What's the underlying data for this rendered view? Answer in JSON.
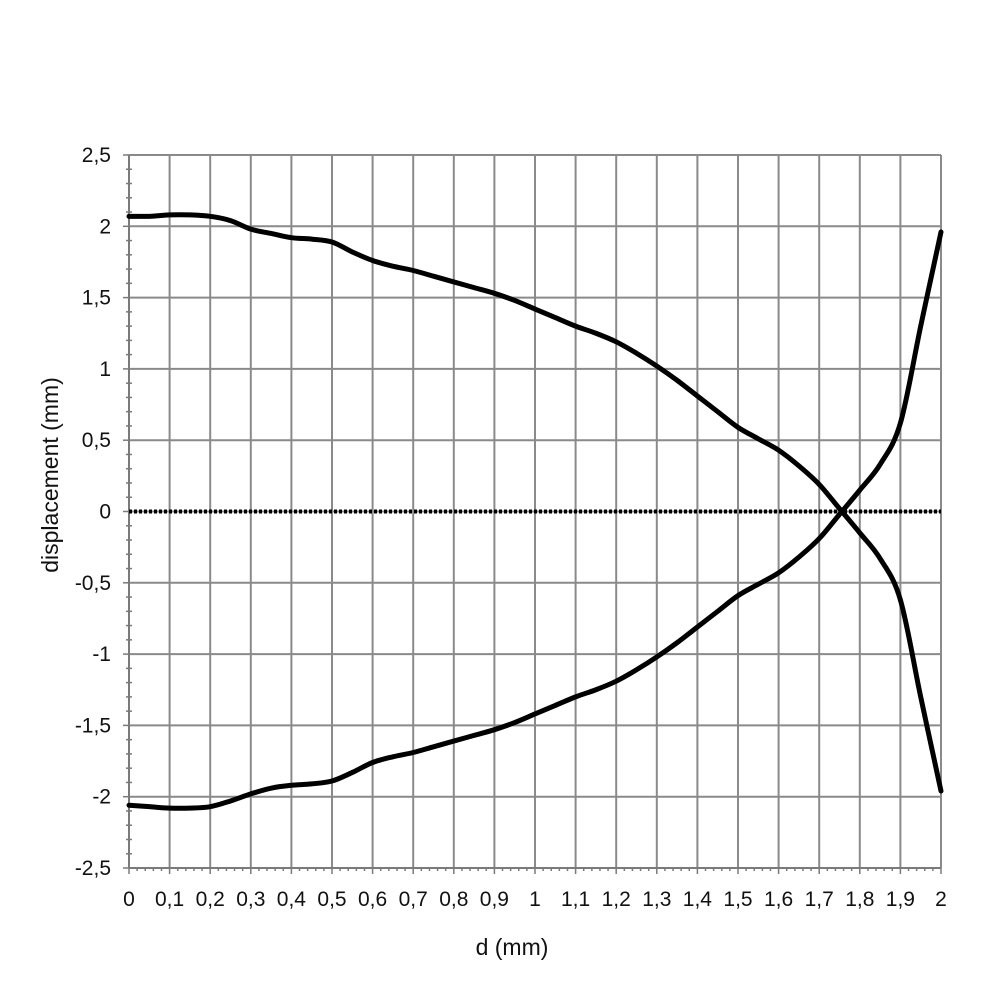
{
  "chart_data": {
    "type": "line",
    "xlabel": "d (mm)",
    "ylabel": "displacement (mm)",
    "xlim": [
      0,
      2
    ],
    "ylim": [
      -2.5,
      2.5
    ],
    "grid": true,
    "legend": "none",
    "x_tick_labels": [
      "0",
      "0,1",
      "0,2",
      "0,3",
      "0,4",
      "0,5",
      "0,6",
      "0,7",
      "0,8",
      "0,9",
      "1",
      "1,1",
      "1,2",
      "1,3",
      "1,4",
      "1,5",
      "1,6",
      "1,7",
      "1,8",
      "1,9",
      "2"
    ],
    "y_tick_labels": [
      "2,5",
      "2",
      "1,5",
      "1",
      "0,5",
      "0",
      "-0,5",
      "-1",
      "-1,5",
      "-2",
      "-2,5"
    ],
    "x": [
      0,
      0.05,
      0.1,
      0.15,
      0.2,
      0.25,
      0.3,
      0.35,
      0.4,
      0.45,
      0.5,
      0.55,
      0.6,
      0.65,
      0.7,
      0.75,
      0.8,
      0.85,
      0.9,
      0.95,
      1.0,
      1.05,
      1.1,
      1.15,
      1.2,
      1.25,
      1.3,
      1.35,
      1.4,
      1.45,
      1.5,
      1.55,
      1.6,
      1.65,
      1.7,
      1.75,
      1.8,
      1.85,
      1.9,
      1.95,
      2.0
    ],
    "series": [
      {
        "values": [
          2.07,
          2.07,
          2.08,
          2.08,
          2.07,
          2.04,
          1.98,
          1.95,
          1.92,
          1.91,
          1.89,
          1.82,
          1.76,
          1.72,
          1.69,
          1.65,
          1.61,
          1.57,
          1.53,
          1.48,
          1.42,
          1.36,
          1.3,
          1.25,
          1.19,
          1.11,
          1.02,
          0.92,
          0.81,
          0.7,
          0.59,
          0.51,
          0.43,
          0.32,
          0.19,
          0.02,
          -0.15,
          -0.33,
          -0.62,
          -1.3,
          -1.96
        ]
      },
      {
        "values": [
          -2.06,
          -2.07,
          -2.08,
          -2.08,
          -2.07,
          -2.03,
          -1.98,
          -1.94,
          -1.92,
          -1.91,
          -1.89,
          -1.83,
          -1.76,
          -1.72,
          -1.69,
          -1.65,
          -1.61,
          -1.57,
          -1.53,
          -1.48,
          -1.42,
          -1.36,
          -1.3,
          -1.25,
          -1.19,
          -1.11,
          -1.02,
          -0.92,
          -0.81,
          -0.7,
          -0.59,
          -0.51,
          -0.43,
          -0.32,
          -0.19,
          -0.02,
          0.15,
          0.33,
          0.62,
          1.3,
          1.96
        ]
      }
    ]
  }
}
